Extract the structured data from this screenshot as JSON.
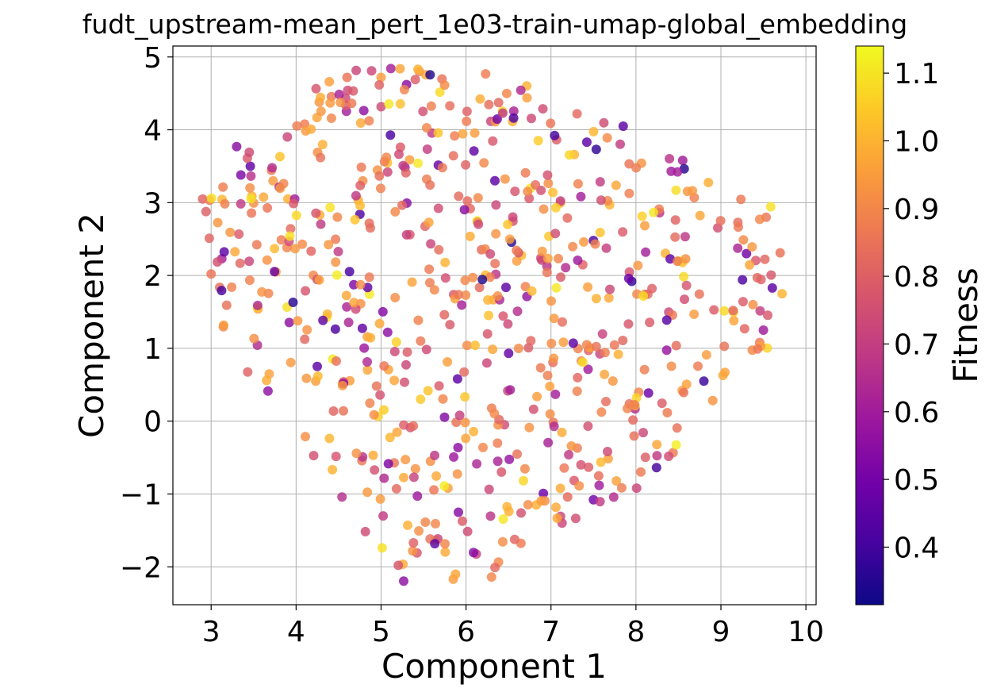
{
  "chart_data": {
    "type": "scatter",
    "title": "fudt_upstream-mean_pert_1e03-train-umap-global_embedding",
    "xlabel": "Component 1",
    "ylabel": "Component 2",
    "xlim": [
      2.55,
      10.12
    ],
    "ylim": [
      -2.52,
      5.15
    ],
    "xticks": [
      "3",
      "4",
      "5",
      "6",
      "7",
      "8",
      "9",
      "10"
    ],
    "yticks": [
      "−2",
      "−1",
      "0",
      "1",
      "2",
      "3",
      "4",
      "5"
    ],
    "grid": true,
    "colorbar": {
      "label": "Fitness",
      "range": [
        0.315,
        1.14
      ],
      "colormap": "plasma",
      "ticks": [
        "0.4",
        "0.5",
        "0.6",
        "0.7",
        "0.8",
        "0.9",
        "1.0",
        "1.1"
      ]
    },
    "point_count": 700,
    "points_sample": [
      [
        5.0,
        4.72,
        0.95
      ],
      [
        5.3,
        4.62,
        0.55
      ],
      [
        4.6,
        4.72,
        0.85
      ],
      [
        5.45,
        4.8,
        0.9
      ],
      [
        7.85,
        4.05,
        0.45
      ],
      [
        2.9,
        3.05,
        0.8
      ],
      [
        3.0,
        2.02,
        0.85
      ],
      [
        9.72,
        1.75,
        1.0
      ],
      [
        9.5,
        1.25,
        0.6
      ],
      [
        7.5,
        -1.08,
        0.5
      ],
      [
        5.85,
        -2.17,
        0.95
      ],
      [
        6.3,
        -2.14,
        0.9
      ],
      [
        7.95,
        1.92,
        0.38
      ],
      [
        7.5,
        2.48,
        0.42
      ],
      [
        5.9,
        0.58,
        0.45
      ],
      [
        6.85,
        3.85,
        1.05
      ],
      [
        8.55,
        3.58,
        0.6
      ],
      [
        3.35,
        3.38,
        0.52
      ],
      [
        3.3,
        3.77,
        0.55
      ],
      [
        9.3,
        2.3,
        0.5
      ]
    ],
    "colormap_stops": [
      "#0d0887",
      "#46039f",
      "#7201a8",
      "#9c179e",
      "#bd3786",
      "#d8576b",
      "#ed7953",
      "#fb9f3a",
      "#fdca26",
      "#f0f921"
    ]
  }
}
